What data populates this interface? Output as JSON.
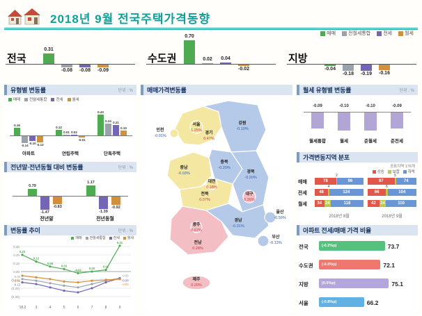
{
  "header": {
    "title": "2018년 9월 전국주택가격동향"
  },
  "labels": {
    "unit": "단위 : %"
  },
  "series_legend": [
    {
      "label": "매매",
      "color": "#4fab52"
    },
    {
      "label": "전월세통합",
      "color": "#9aa3ab"
    },
    {
      "label": "전세",
      "color": "#7566b3"
    },
    {
      "label": "월세",
      "color": "#d28f3c"
    }
  ],
  "chart_data": [
    {
      "type": "bar",
      "series_names": [
        "매매",
        "전월세통합",
        "전세",
        "월세"
      ],
      "groups": [
        {
          "name": "전국",
          "values": [
            0.31,
            -0.08,
            -0.08,
            -0.09
          ]
        },
        {
          "name": "수도권",
          "values": [
            0.7,
            0.02,
            0.04,
            -0.02
          ]
        },
        {
          "name": "지방",
          "values": [
            -0.04,
            -0.18,
            -0.19,
            -0.16
          ]
        }
      ]
    },
    {
      "type": "bar",
      "title": "유형별 변동률",
      "series_names": [
        "매매",
        "전월세통합",
        "전세",
        "월세"
      ],
      "groups": [
        {
          "name": "아파트",
          "values": [
            0.16,
            -0.14,
            -0.1,
            -0.13
          ]
        },
        {
          "name": "연립주택",
          "values": [
            0.12,
            0.01,
            0.02,
            -0.01
          ]
        },
        {
          "name": "단독주택",
          "values": [
            0.43,
            0.24,
            0.21,
            0.1
          ]
        }
      ]
    },
    {
      "type": "bar",
      "title": "전년말·전년동월 대비 변동률",
      "series_names": [
        "매매",
        "전세",
        "월세"
      ],
      "groups": [
        {
          "name": "전년말",
          "values": [
            0.79,
            -1.47,
            -0.83
          ]
        },
        {
          "name": "전년동월",
          "values": [
            1.17,
            -1.39,
            -0.92
          ]
        }
      ]
    },
    {
      "type": "line",
      "title": "변동률 추이",
      "x": [
        "'18.2",
        "3",
        "4",
        "5",
        "6",
        "7",
        "8",
        "9"
      ],
      "ylim": [
        -0.35,
        0.35
      ],
      "ytick_values": [
        0.3,
        0.2,
        0.1,
        0.0,
        -0.1,
        -0.2,
        -0.3
      ],
      "ytick_labels": [
        "0.30",
        "0.20",
        "0.10",
        "0.00",
        "(0.10)",
        "(0.20)",
        "(0.30)"
      ],
      "series": [
        {
          "name": "매매",
          "values": [
            0.2,
            0.12,
            0.06,
            0.03,
            -0.02,
            0.0,
            0.02,
            0.31
          ]
        },
        {
          "name": "전월세통합",
          "values": [
            -0.09,
            -0.11,
            -0.14,
            -0.17,
            -0.19,
            -0.15,
            -0.11,
            -0.08
          ]
        },
        {
          "name": "전세",
          "values": [
            -0.13,
            -0.15,
            -0.19,
            -0.23,
            -0.25,
            -0.2,
            -0.13,
            -0.08
          ]
        },
        {
          "name": "월세",
          "values": [
            -0.05,
            -0.07,
            -0.09,
            -0.12,
            -0.13,
            -0.11,
            -0.1,
            -0.09
          ]
        }
      ]
    },
    {
      "type": "map",
      "title": "매매가격변동률",
      "palette": {
        "rise_strong": "#f3bfc5",
        "rise": "#f4e7a2",
        "fall": "#b5c9e8"
      },
      "regions": [
        {
          "id": "seoul",
          "name": "서울",
          "value": 1.25,
          "tone": "rise"
        },
        {
          "id": "incheon",
          "name": "인천",
          "value": -0.01,
          "tone": "rise"
        },
        {
          "id": "gyeonggi",
          "name": "경기",
          "value": 0.47,
          "tone": "rise"
        },
        {
          "id": "gangwon",
          "name": "강원",
          "value": -0.1,
          "tone": "fall"
        },
        {
          "id": "chungbuk",
          "name": "충북",
          "value": -0.2,
          "tone": "fall"
        },
        {
          "id": "chungnam",
          "name": "충남",
          "value": -0.03,
          "tone": "rise"
        },
        {
          "id": "daejeon",
          "name": "대전",
          "value": 0.18,
          "tone": "rise"
        },
        {
          "id": "gyeongbuk",
          "name": "경북",
          "value": -0.2,
          "tone": "fall"
        },
        {
          "id": "daegu",
          "name": "대구",
          "value": 0.36,
          "tone": "rise_strong"
        },
        {
          "id": "ulsan",
          "name": "울산",
          "value": -0.59,
          "tone": "fall"
        },
        {
          "id": "jeonbuk",
          "name": "전북",
          "value": 0.07,
          "tone": "rise"
        },
        {
          "id": "gyeongnam",
          "name": "경남",
          "value": -0.31,
          "tone": "fall"
        },
        {
          "id": "busan",
          "name": "부산",
          "value": -0.13,
          "tone": "fall"
        },
        {
          "id": "gwangju",
          "name": "광주",
          "value": 0.67,
          "tone": "rise_strong"
        },
        {
          "id": "jeonnam",
          "name": "전남",
          "value": 0.28,
          "tone": "rise_strong"
        },
        {
          "id": "jeju",
          "name": "제주",
          "value": 0.2,
          "tone": "rise_strong"
        }
      ]
    },
    {
      "type": "bar",
      "title": "월세 유형별 변동률",
      "categories": [
        "월세통합",
        "월세",
        "준월세",
        "준전세"
      ],
      "values": [
        -0.09,
        -0.1,
        -0.1,
        -0.09
      ],
      "bar_color": "#b1a6d6"
    },
    {
      "type": "stacked-bar",
      "title": "가격변동지역 분포",
      "note": "공표지역 176개",
      "legend": [
        {
          "label": "상승",
          "color": "#e2574c"
        },
        {
          "label": "보합",
          "color": "#bcc94e"
        },
        {
          "label": "하락",
          "color": "#6b96d6"
        }
      ],
      "period_labels": [
        "2018년 8월",
        "2018년 9월"
      ],
      "total": 176,
      "rows": [
        {
          "name": "매매",
          "periods": [
            [
              78,
              2,
              96
            ],
            [
              97,
              5,
              74
            ]
          ]
        },
        {
          "name": "전세",
          "periods": [
            [
              48,
              4,
              124
            ],
            [
              66,
              6,
              104
            ]
          ]
        },
        {
          "name": "월세",
          "periods": [
            [
              34,
              24,
              118
            ],
            [
              42,
              24,
              110
            ]
          ]
        }
      ]
    },
    {
      "type": "bar-horizontal",
      "title": "아파트 전세/매매 가격 비율",
      "rows": [
        {
          "name": "전국",
          "change": "(-0.2%p)",
          "value": 73.7,
          "color": "#56c17e"
        },
        {
          "name": "수도권",
          "change": "(-0.6%p)",
          "value": 72.1,
          "color": "#f0776e"
        },
        {
          "name": "지방",
          "change": "(0.0%p)",
          "value": 75.1,
          "color": "#b3a6dc"
        },
        {
          "name": "서울",
          "change": "(-0.8%p)",
          "value": 66.2,
          "color": "#62b1e5"
        }
      ]
    }
  ]
}
